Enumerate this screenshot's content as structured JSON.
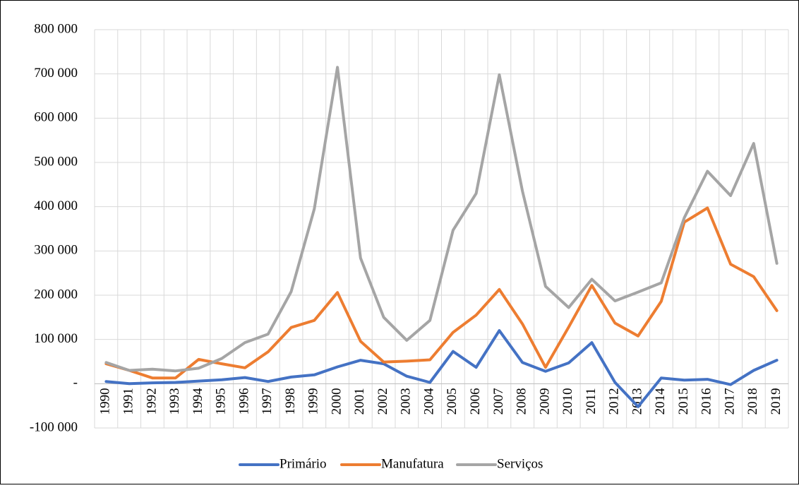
{
  "chart_data": {
    "type": "line",
    "categories": [
      "1990",
      "1991",
      "1992",
      "1993",
      "1994",
      "1995",
      "1996",
      "1997",
      "1998",
      "1999",
      "2000",
      "2001",
      "2002",
      "2003",
      "2004",
      "2005",
      "2006",
      "2007",
      "2008",
      "2009",
      "2010",
      "2011",
      "2012",
      "2013",
      "2014",
      "2015",
      "2016",
      "2017",
      "2018",
      "2019"
    ],
    "series": [
      {
        "name": "Primário",
        "color": "#4472c4",
        "values": [
          5000,
          0,
          2000,
          3000,
          6000,
          9000,
          14000,
          5000,
          15000,
          20000,
          38000,
          53000,
          45000,
          17000,
          3000,
          73000,
          37000,
          120000,
          48000,
          28000,
          47000,
          93000,
          3000,
          -52000,
          13000,
          8000,
          10000,
          -2000,
          30000,
          53000
        ]
      },
      {
        "name": "Manufatura",
        "color": "#ed7d31",
        "values": [
          45000,
          30000,
          13000,
          13000,
          55000,
          45000,
          36000,
          72000,
          127000,
          143000,
          206000,
          96000,
          49000,
          51000,
          54000,
          116000,
          155000,
          213000,
          135000,
          37000,
          128000,
          222000,
          137000,
          108000,
          186000,
          365000,
          397000,
          270000,
          242000,
          165000
        ]
      },
      {
        "name": "Serviços",
        "color": "#a5a5a5",
        "values": [
          48000,
          30000,
          33000,
          29000,
          35000,
          57000,
          93000,
          112000,
          208000,
          395000,
          715000,
          284000,
          150000,
          98000,
          143000,
          347000,
          430000,
          698000,
          435000,
          220000,
          172000,
          236000,
          187000,
          207000,
          228000,
          375000,
          480000,
          425000,
          543000,
          272000
        ]
      }
    ],
    "ylim": [
      -100000,
      800000
    ],
    "yticks": [
      {
        "value": -100000,
        "label": "-100 000"
      },
      {
        "value": 0,
        "label": "-"
      },
      {
        "value": 100000,
        "label": "100 000"
      },
      {
        "value": 200000,
        "label": "200 000"
      },
      {
        "value": 300000,
        "label": "300 000"
      },
      {
        "value": 400000,
        "label": "400 000"
      },
      {
        "value": 500000,
        "label": "500 000"
      },
      {
        "value": 600000,
        "label": "600 000"
      },
      {
        "value": 700000,
        "label": "700 000"
      },
      {
        "value": 800000,
        "label": "800 000"
      }
    ],
    "grid": true,
    "legend": "bottom"
  }
}
